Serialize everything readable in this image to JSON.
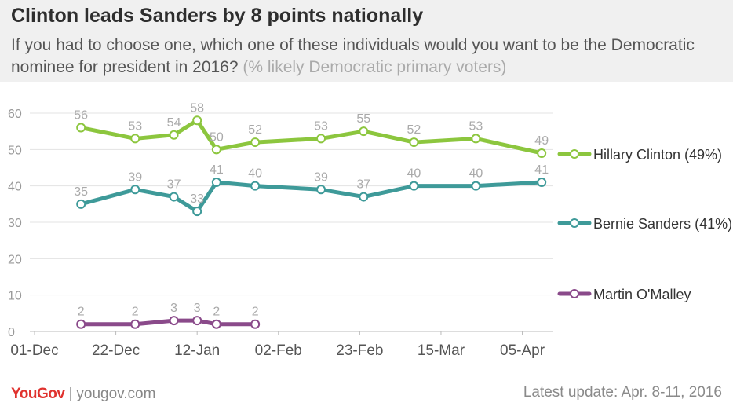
{
  "title": "Clinton leads Sanders by 8 points nationally",
  "subtitle": "If you had to choose one, which one of these individuals would you want to be the Democratic nominee for president in 2016?",
  "subtitle_note": "(% likely Democratic primary voters)",
  "footer": {
    "brand": "YouGov",
    "separator": "|",
    "site": "yougov.com",
    "update": "Latest update: Apr. 8-11, 2016"
  },
  "chart_data": {
    "type": "line",
    "title": "",
    "xlabel": "",
    "ylabel": "",
    "ylim": [
      0,
      60
    ],
    "yticks": [
      0,
      10,
      20,
      30,
      40,
      50,
      60
    ],
    "x_axis": {
      "start": "2015-12-01",
      "end": "2016-04-13",
      "tick_dates": [
        "2015-12-01",
        "2015-12-22",
        "2016-01-12",
        "2016-02-02",
        "2016-02-23",
        "2016-03-15",
        "2016-04-05"
      ],
      "tick_labels": [
        "01-Dec",
        "22-Dec",
        "12-Jan",
        "02-Feb",
        "23-Feb",
        "15-Mar",
        "05-Apr"
      ]
    },
    "grid": "horizontal",
    "legend": "right",
    "series": [
      {
        "name": "Hillary Clinton (49%)",
        "color": "#8cc63e",
        "points": [
          {
            "x": "2015-12-13",
            "y": 56
          },
          {
            "x": "2015-12-27",
            "y": 53
          },
          {
            "x": "2016-01-06",
            "y": 54
          },
          {
            "x": "2016-01-12",
            "y": 58
          },
          {
            "x": "2016-01-17",
            "y": 50
          },
          {
            "x": "2016-01-27",
            "y": 52
          },
          {
            "x": "2016-02-13",
            "y": 53
          },
          {
            "x": "2016-02-24",
            "y": 55
          },
          {
            "x": "2016-03-08",
            "y": 52
          },
          {
            "x": "2016-03-24",
            "y": 53
          },
          {
            "x": "2016-04-10",
            "y": 49
          }
        ]
      },
      {
        "name": "Bernie Sanders (41%)",
        "color": "#3e9a99",
        "points": [
          {
            "x": "2015-12-13",
            "y": 35
          },
          {
            "x": "2015-12-27",
            "y": 39
          },
          {
            "x": "2016-01-06",
            "y": 37
          },
          {
            "x": "2016-01-12",
            "y": 33
          },
          {
            "x": "2016-01-17",
            "y": 41
          },
          {
            "x": "2016-01-27",
            "y": 40
          },
          {
            "x": "2016-02-13",
            "y": 39
          },
          {
            "x": "2016-02-24",
            "y": 37
          },
          {
            "x": "2016-03-08",
            "y": 40
          },
          {
            "x": "2016-03-24",
            "y": 40
          },
          {
            "x": "2016-04-10",
            "y": 41
          }
        ]
      },
      {
        "name": "Martin O'Malley",
        "color": "#8a4a8a",
        "points": [
          {
            "x": "2015-12-13",
            "y": 2
          },
          {
            "x": "2015-12-27",
            "y": 2
          },
          {
            "x": "2016-01-06",
            "y": 3
          },
          {
            "x": "2016-01-12",
            "y": 3
          },
          {
            "x": "2016-01-17",
            "y": 2
          },
          {
            "x": "2016-01-27",
            "y": 2
          }
        ]
      }
    ]
  }
}
